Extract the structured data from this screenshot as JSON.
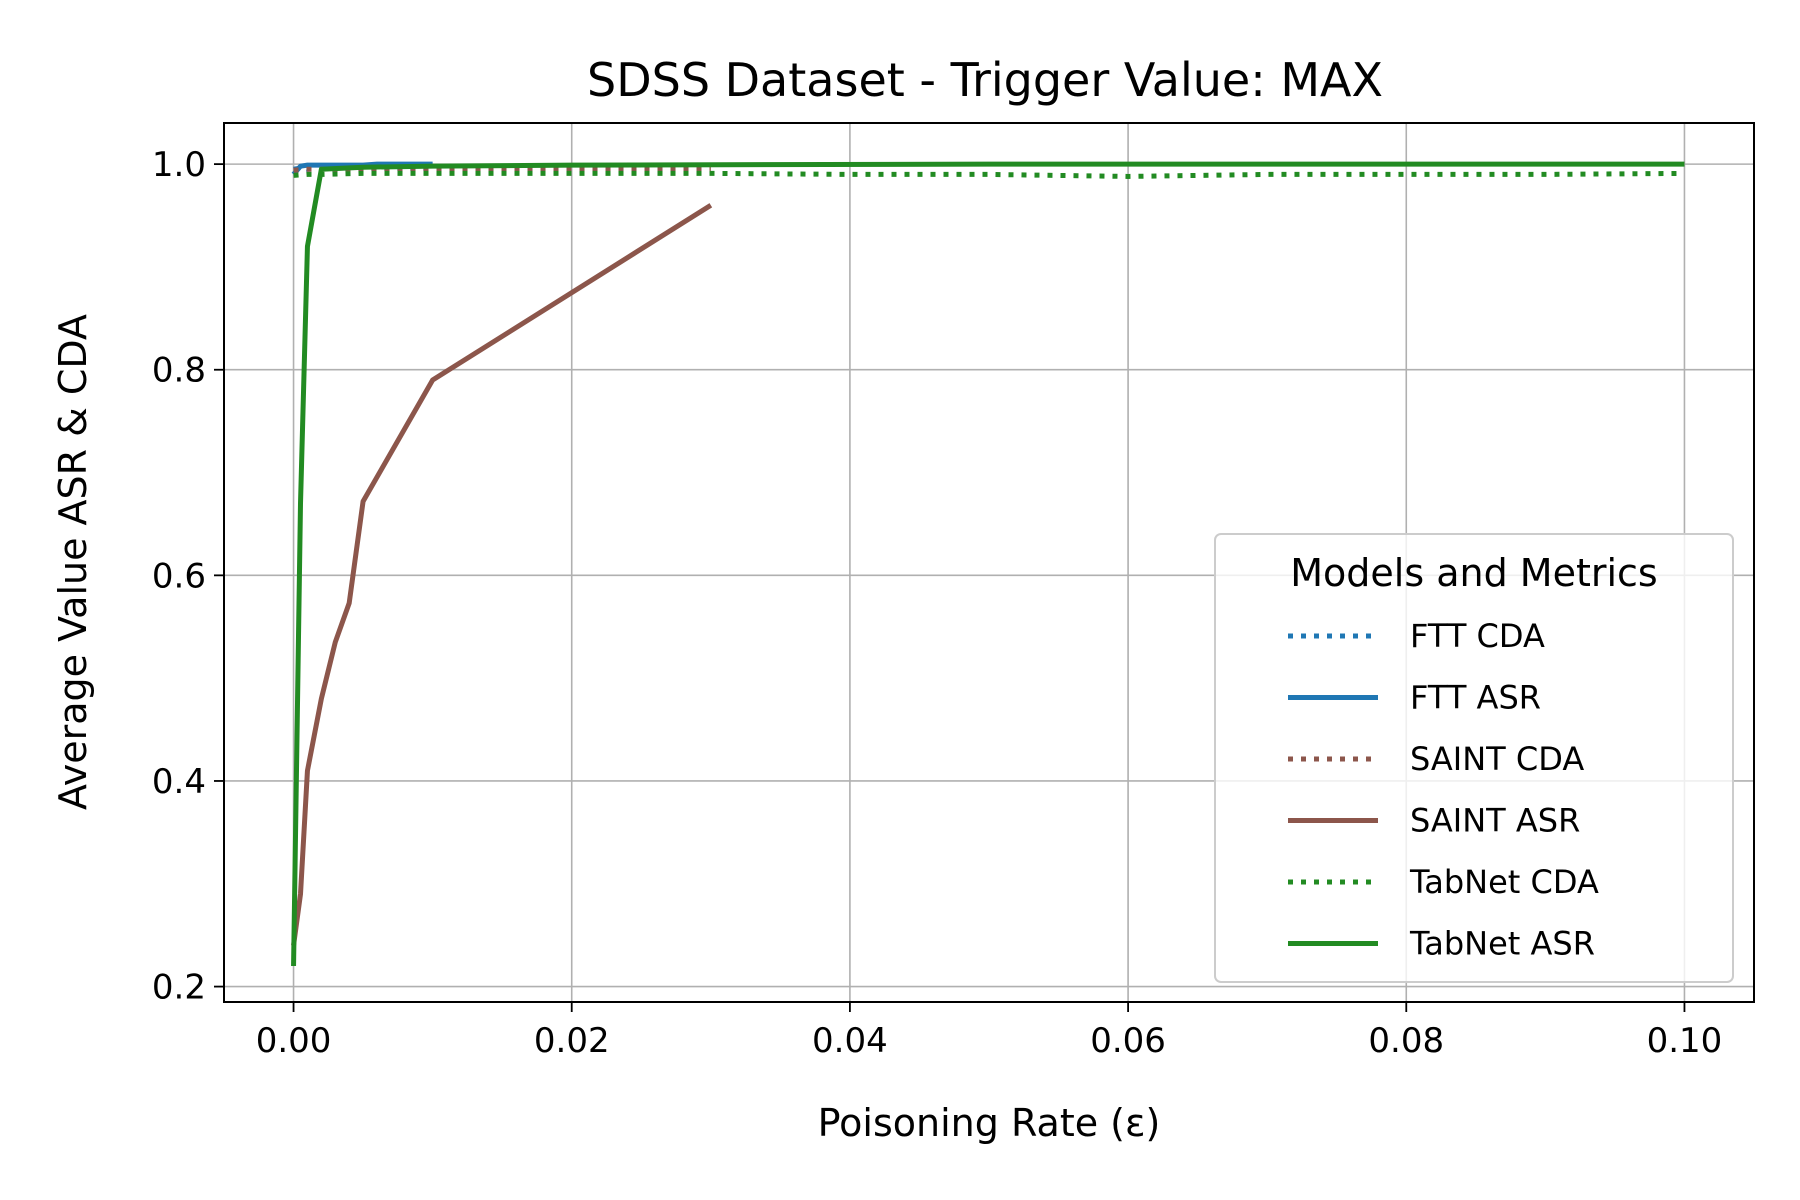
{
  "chart_data": {
    "type": "line",
    "title": "SDSS Dataset - Trigger Value: MAX",
    "xlabel": "Poisoning Rate (ε)",
    "ylabel": "Average Value ASR & CDA",
    "xlim": [
      -0.005,
      0.105
    ],
    "ylim": [
      0.185,
      1.04
    ],
    "xticks": [
      0.0,
      0.02,
      0.04,
      0.06,
      0.08,
      0.1
    ],
    "xtick_labels": [
      "0.00",
      "0.02",
      "0.04",
      "0.06",
      "0.08",
      "0.10"
    ],
    "yticks": [
      0.2,
      0.4,
      0.6,
      0.8,
      1.0
    ],
    "ytick_labels": [
      "0.2",
      "0.4",
      "0.6",
      "0.8",
      "1.0"
    ],
    "grid": true,
    "legend": {
      "title": "Models and Metrics",
      "placement": "lower-right"
    },
    "series": [
      {
        "name": "FTT CDA",
        "color": "#1f77b4",
        "style": "dotted",
        "x": [
          0.0,
          0.0005,
          0.001,
          0.002,
          0.003,
          0.005,
          0.01
        ],
        "y": [
          0.995,
          0.996,
          0.995,
          0.996,
          0.995,
          0.996,
          0.996
        ]
      },
      {
        "name": "FTT ASR",
        "color": "#1f77b4",
        "style": "solid",
        "x": [
          0.0,
          0.0005,
          0.001,
          0.002,
          0.003,
          0.005,
          0.006,
          0.01
        ],
        "y": [
          0.99,
          0.998,
          0.999,
          0.999,
          0.999,
          0.999,
          1.0,
          1.0
        ]
      },
      {
        "name": "SAINT CDA",
        "color": "#8c564b",
        "style": "dotted",
        "x": [
          0.0,
          0.001,
          0.005,
          0.01,
          0.02,
          0.03
        ],
        "y": [
          0.994,
          0.995,
          0.995,
          0.995,
          0.995,
          0.995
        ]
      },
      {
        "name": "SAINT ASR",
        "color": "#8c564b",
        "style": "solid",
        "x": [
          0.0,
          0.0005,
          0.001,
          0.002,
          0.003,
          0.004,
          0.005,
          0.01,
          0.03
        ],
        "y": [
          0.24,
          0.29,
          0.41,
          0.48,
          0.535,
          0.573,
          0.672,
          0.79,
          0.96
        ]
      },
      {
        "name": "TabNet CDA",
        "color": "#228b22",
        "style": "dotted",
        "x": [
          0.0,
          0.001,
          0.002,
          0.005,
          0.01,
          0.02,
          0.03,
          0.04,
          0.05,
          0.06,
          0.07,
          0.08,
          0.09,
          0.1
        ],
        "y": [
          0.989,
          0.99,
          0.99,
          0.991,
          0.991,
          0.991,
          0.991,
          0.99,
          0.99,
          0.988,
          0.99,
          0.99,
          0.99,
          0.991
        ]
      },
      {
        "name": "TabNet ASR",
        "color": "#228b22",
        "style": "solid",
        "x": [
          0.0,
          0.0005,
          0.001,
          0.002,
          0.005,
          0.01,
          0.02,
          0.05,
          0.1
        ],
        "y": [
          0.22,
          0.67,
          0.92,
          0.995,
          0.997,
          0.998,
          0.999,
          1.0,
          1.0
        ]
      }
    ]
  }
}
